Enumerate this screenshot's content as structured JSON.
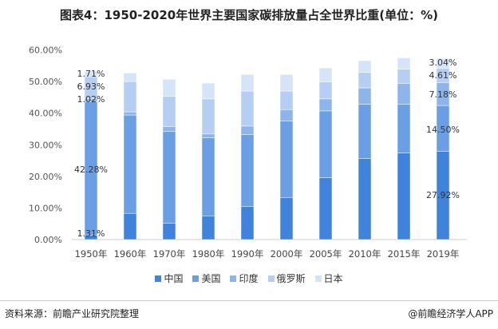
{
  "chart_data": {
    "type": "bar",
    "stacked": true,
    "title": "图表4：1950-2020年世界主要国家碳排放量占全世界比重(单位：%)",
    "categories": [
      "1950年",
      "1960年",
      "1970年",
      "1980年",
      "1990年",
      "2000年",
      "2005年",
      "2010年",
      "2015年",
      "2019年"
    ],
    "ylim": [
      0,
      60
    ],
    "yticks": [
      "0.00%",
      "10.00%",
      "20.00%",
      "30.00%",
      "40.00%",
      "50.00%",
      "60.00%"
    ],
    "series": [
      {
        "name": "中国",
        "color": "#3f83dc",
        "values": [
          1.31,
          8.3,
          5.2,
          7.5,
          10.5,
          13.2,
          19.6,
          25.6,
          27.4,
          27.92
        ]
      },
      {
        "name": "美国",
        "color": "#6a9fe6",
        "values": [
          42.28,
          31.1,
          29.0,
          24.7,
          22.7,
          24.3,
          21.1,
          17.2,
          15.4,
          14.5
        ]
      },
      {
        "name": "印度",
        "color": "#8db5ec",
        "values": [
          1.02,
          1.0,
          1.5,
          1.2,
          2.7,
          3.6,
          3.8,
          5.2,
          6.6,
          7.18
        ]
      },
      {
        "name": "俄罗斯",
        "color": "#b4cff3",
        "values": [
          6.93,
          9.6,
          9.6,
          11.1,
          11.1,
          5.9,
          5.4,
          4.9,
          4.5,
          4.61
        ]
      },
      {
        "name": "日本",
        "color": "#d6e4f7",
        "values": [
          1.71,
          2.7,
          5.4,
          5.0,
          5.2,
          5.2,
          4.4,
          3.7,
          3.6,
          3.04
        ]
      }
    ],
    "data_labels": {
      "1950年": [
        "1.31%",
        "42.28%",
        "1.02%",
        "6.93%",
        "1.71%"
      ],
      "2019年": [
        "27.92%",
        "14.50%",
        "7.18%",
        "4.61%",
        "3.04%"
      ]
    },
    "legend": "bottom"
  },
  "footer": {
    "source": "资料来源：前瞻产业研究院整理",
    "brand": "@前瞻经济学人APP"
  }
}
